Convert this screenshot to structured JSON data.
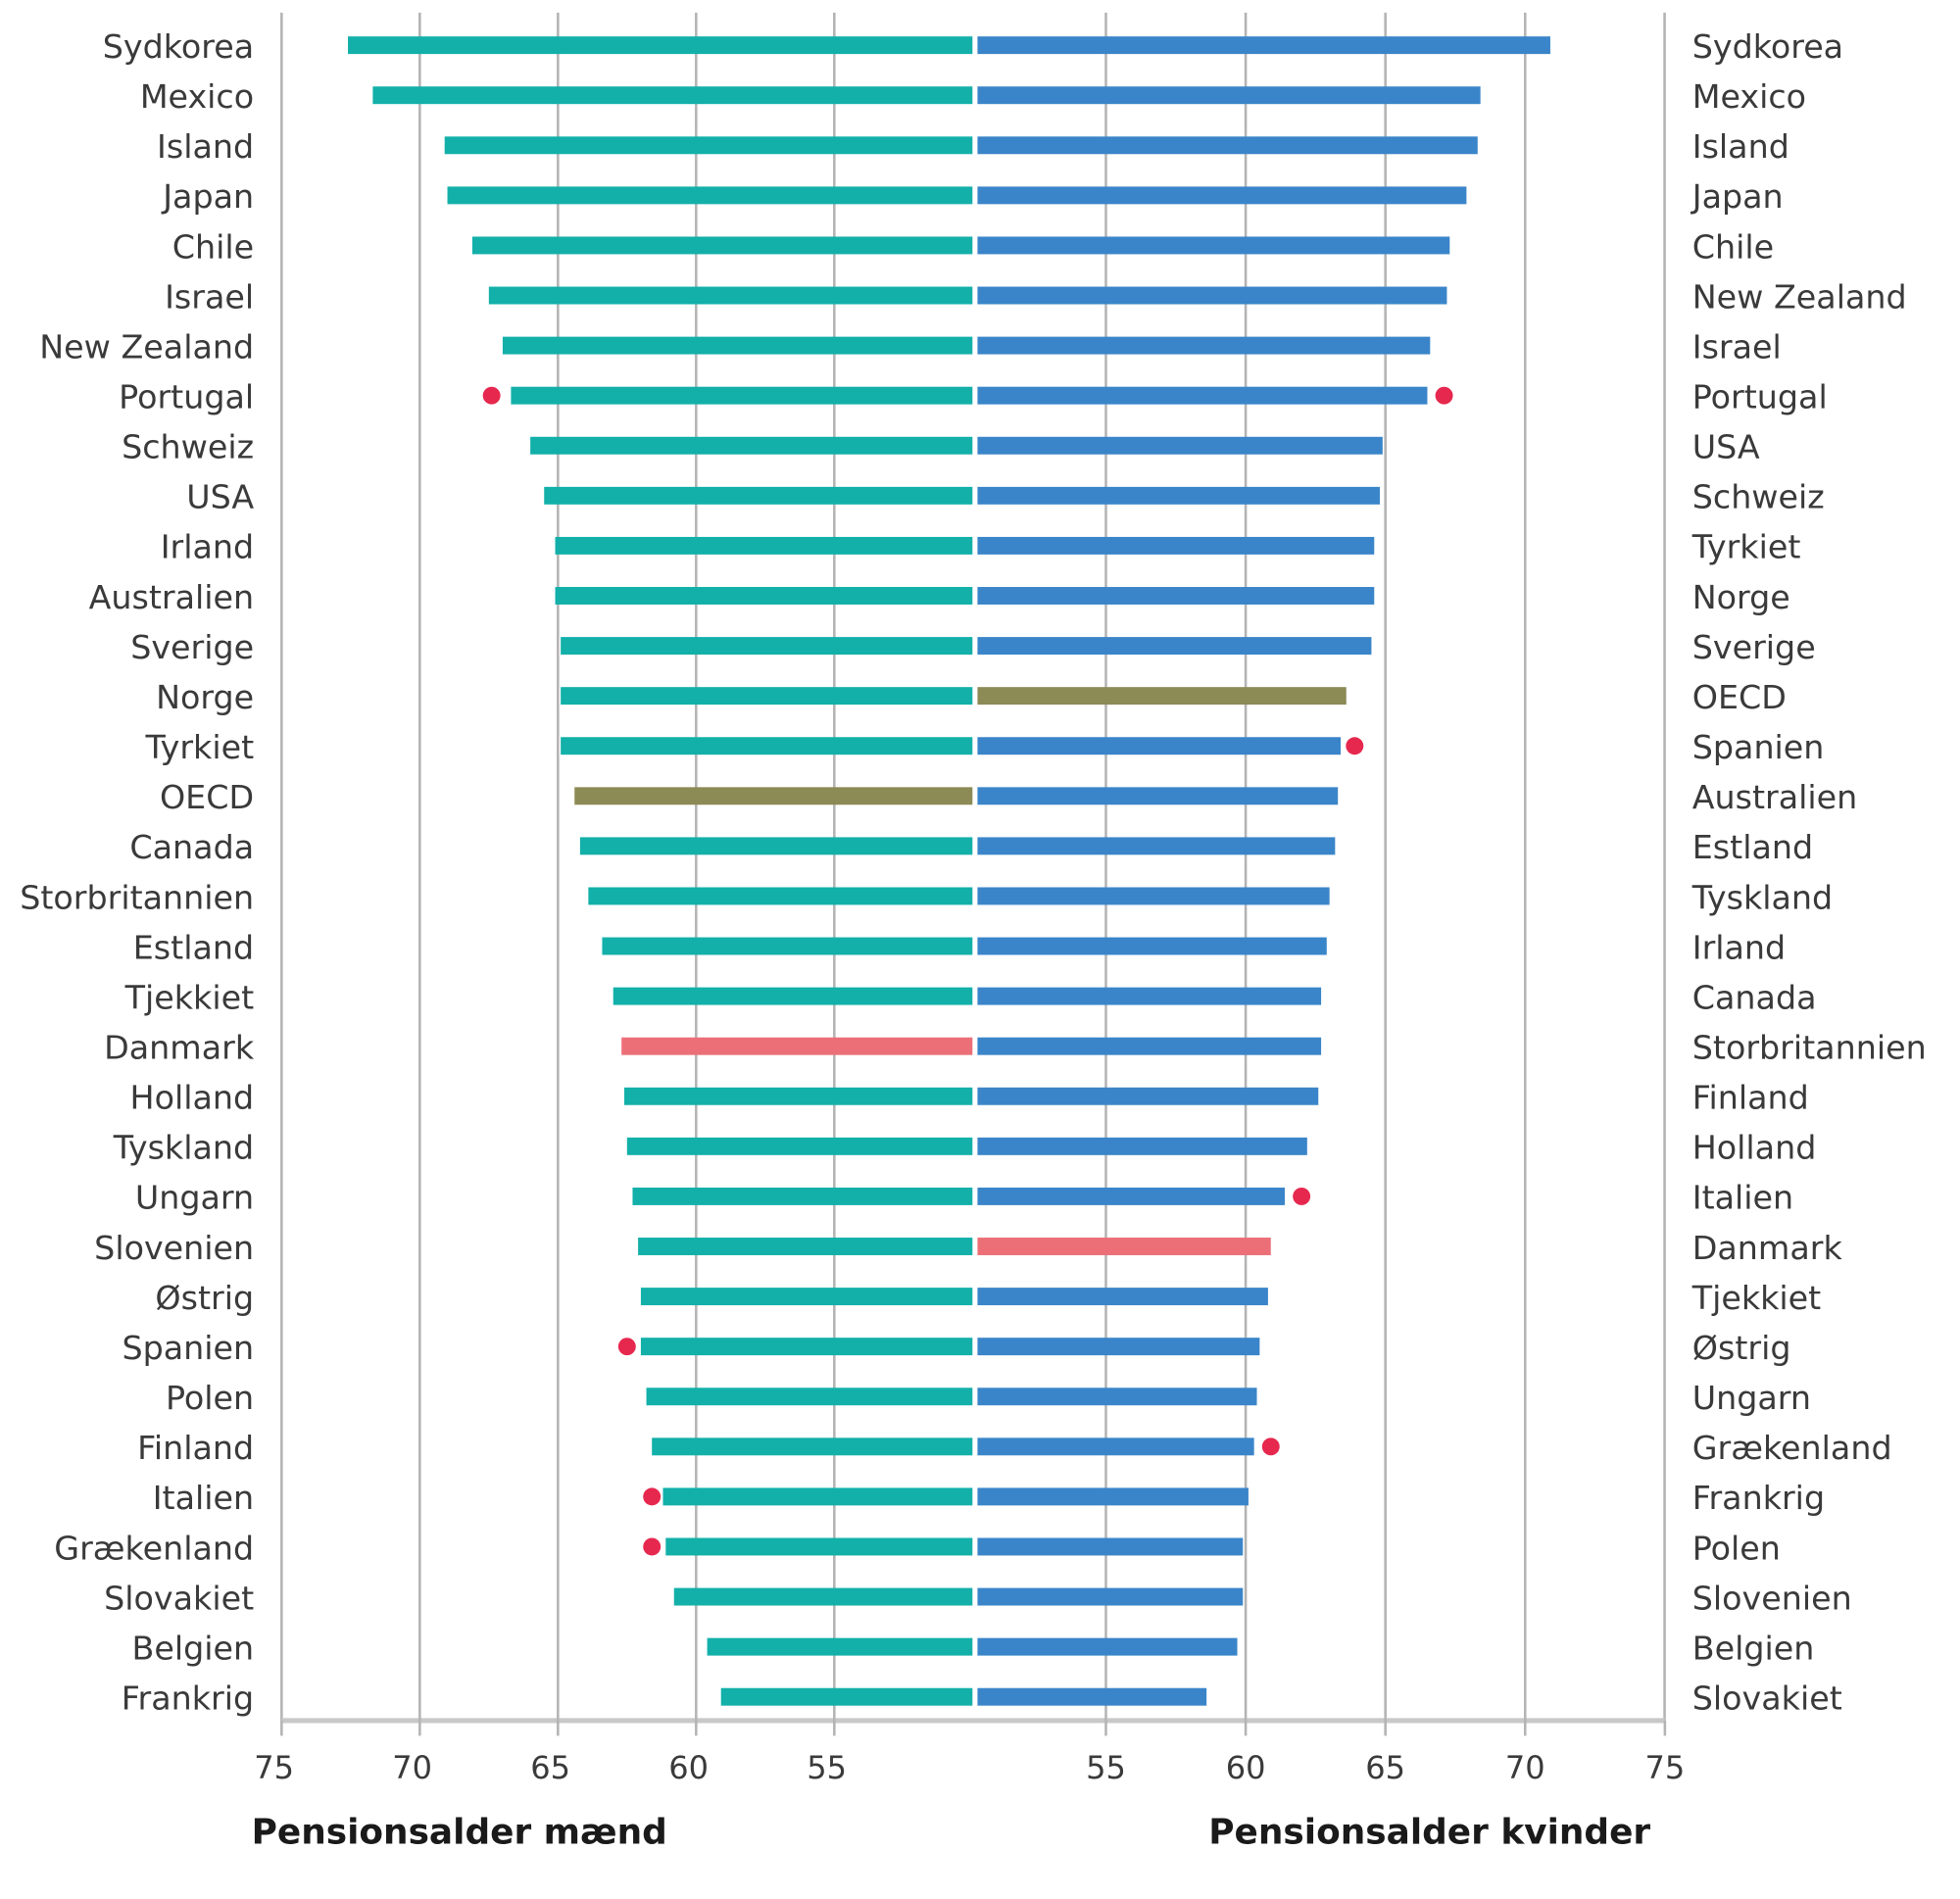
{
  "chart_data": [
    {
      "type": "bar",
      "orientation": "horizontal",
      "side": "left",
      "xlabel": "Pensionsalder mænd",
      "xlim": [
        50,
        75
      ],
      "xticks": [
        75,
        70,
        65,
        60,
        55
      ],
      "grid": true,
      "categories": [
        "Sydkorea",
        "Mexico",
        "Island",
        "Japan",
        "Chile",
        "Israel",
        "New Zealand",
        "Portugal",
        "Schweiz",
        "USA",
        "Irland",
        "Australien",
        "Sverige",
        "Norge",
        "Tyrkiet",
        "OECD",
        "Canada",
        "Storbritannien",
        "Estland",
        "Tjekkiet",
        "Danmark",
        "Holland",
        "Tyskland",
        "Ungarn",
        "Slovenien",
        "Østrig",
        "Spanien",
        "Polen",
        "Finland",
        "Italien",
        "Grækenland",
        "Slovakiet",
        "Belgien",
        "Frankrig"
      ],
      "values": [
        72.6,
        71.7,
        69.1,
        69.0,
        68.1,
        67.5,
        67.0,
        66.7,
        66.0,
        65.5,
        65.1,
        65.1,
        64.9,
        64.9,
        64.9,
        64.4,
        64.2,
        63.9,
        63.4,
        63.0,
        62.7,
        62.6,
        62.5,
        62.3,
        62.1,
        62.0,
        62.0,
        61.8,
        61.6,
        61.2,
        61.1,
        60.8,
        59.6,
        59.1
      ],
      "markers": [
        {
          "category": "Portugal",
          "value": 67.4
        },
        {
          "category": "Spanien",
          "value": 62.5
        },
        {
          "category": "Italien",
          "value": 61.6
        },
        {
          "category": "Grækenland",
          "value": 61.6
        }
      ]
    },
    {
      "type": "bar",
      "orientation": "horizontal",
      "side": "right",
      "xlabel": "Pensionsalder kvinder",
      "xlim": [
        50,
        75
      ],
      "xticks": [
        55,
        60,
        65,
        70,
        75
      ],
      "grid": true,
      "categories": [
        "Sydkorea",
        "Mexico",
        "Island",
        "Japan",
        "Chile",
        "New Zealand",
        "Israel",
        "Portugal",
        "USA",
        "Schweiz",
        "Tyrkiet",
        "Norge",
        "Sverige",
        "OECD",
        "Spanien",
        "Australien",
        "Estland",
        "Tyskland",
        "Irland",
        "Canada",
        "Storbritannien",
        "Finland",
        "Holland",
        "Italien",
        "Danmark",
        "Tjekkiet",
        "Østrig",
        "Ungarn",
        "Grækenland",
        "Frankrig",
        "Polen",
        "Slovenien",
        "Belgien",
        "Slovakiet"
      ],
      "values": [
        70.9,
        68.4,
        68.3,
        67.9,
        67.3,
        67.2,
        66.6,
        66.5,
        64.9,
        64.8,
        64.6,
        64.6,
        64.5,
        63.6,
        63.4,
        63.3,
        63.2,
        63.0,
        62.9,
        62.7,
        62.7,
        62.6,
        62.2,
        61.4,
        60.9,
        60.8,
        60.5,
        60.4,
        60.3,
        60.1,
        59.9,
        59.9,
        59.7,
        58.6
      ],
      "markers": [
        {
          "category": "Portugal",
          "value": 67.1
        },
        {
          "category": "Spanien",
          "value": 63.9
        },
        {
          "category": "Italien",
          "value": 62.0
        },
        {
          "category": "Grækenland",
          "value": 60.9
        }
      ]
    }
  ],
  "colors": {
    "men": "#12b0a9",
    "women": "#3a85c9",
    "oecd": "#8c8a55",
    "denmark": "#ec6f78",
    "marker": "#e6284f",
    "grid": "#b4b4b4"
  }
}
